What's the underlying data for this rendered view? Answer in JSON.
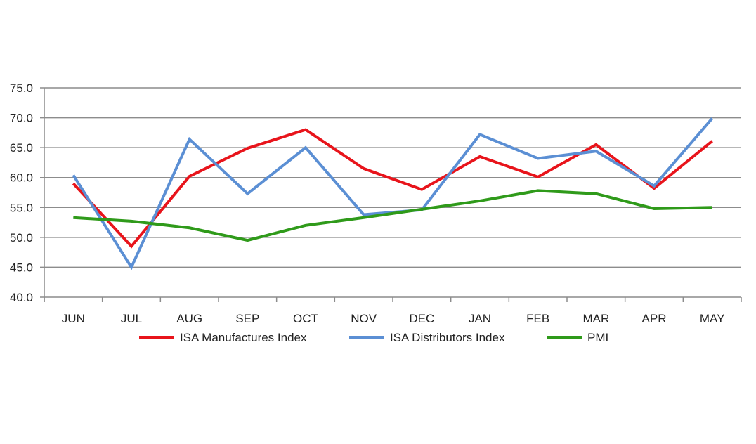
{
  "chart_data": {
    "type": "line",
    "title": "",
    "xlabel": "",
    "ylabel": "",
    "ylim": [
      40,
      75
    ],
    "yticks": [
      "40.0",
      "45.0",
      "50.0",
      "55.0",
      "60.0",
      "65.0",
      "70.0",
      "75.0"
    ],
    "grid": true,
    "legend_position": "bottom",
    "categories": [
      "JUN",
      "JUL",
      "AUG",
      "SEP",
      "OCT",
      "NOV",
      "DEC",
      "JAN",
      "FEB",
      "MAR",
      "APR",
      "MAY"
    ],
    "series": [
      {
        "name": "ISA Manufactures Index",
        "color": "#e8141b",
        "values": [
          59.0,
          48.5,
          60.2,
          64.9,
          68.0,
          61.5,
          58.0,
          63.5,
          60.1,
          65.5,
          58.2,
          66.1
        ]
      },
      {
        "name": "ISA Distributors Index",
        "color": "#5b8fd4",
        "values": [
          60.4,
          45.0,
          66.4,
          57.3,
          65.0,
          53.8,
          54.6,
          67.2,
          63.2,
          64.4,
          58.6,
          69.9
        ]
      },
      {
        "name": "PMI",
        "color": "#2f9a1a",
        "values": [
          53.3,
          52.7,
          51.6,
          49.5,
          52.0,
          53.3,
          54.7,
          56.1,
          57.8,
          57.3,
          54.8,
          55.0
        ]
      }
    ]
  }
}
